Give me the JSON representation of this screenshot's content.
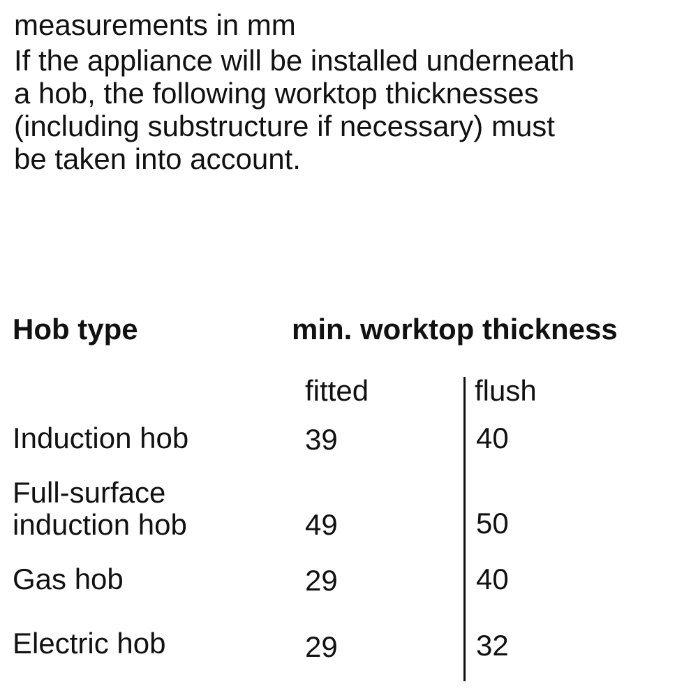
{
  "intro": {
    "unit_note": "measurements in mm",
    "lines": [
      "If the appliance will be installed underneath",
      "a hob, the following worktop thicknesses",
      "(including substructure if necessary) must",
      "be taken into account."
    ]
  },
  "table": {
    "header_hob_type": "Hob type",
    "header_thickness": "min. worktop thickness",
    "sub_fitted": "fitted",
    "sub_flush": "flush",
    "rows": [
      {
        "label": [
          "Induction hob"
        ],
        "fitted": "39",
        "flush": "40"
      },
      {
        "label": [
          "Full-surface",
          "induction hob"
        ],
        "fitted": "49",
        "flush": "50"
      },
      {
        "label": [
          "Gas hob"
        ],
        "fitted": "29",
        "flush": "40"
      },
      {
        "label": [
          "Electric hob"
        ],
        "fitted": "29",
        "flush": "32"
      }
    ]
  }
}
